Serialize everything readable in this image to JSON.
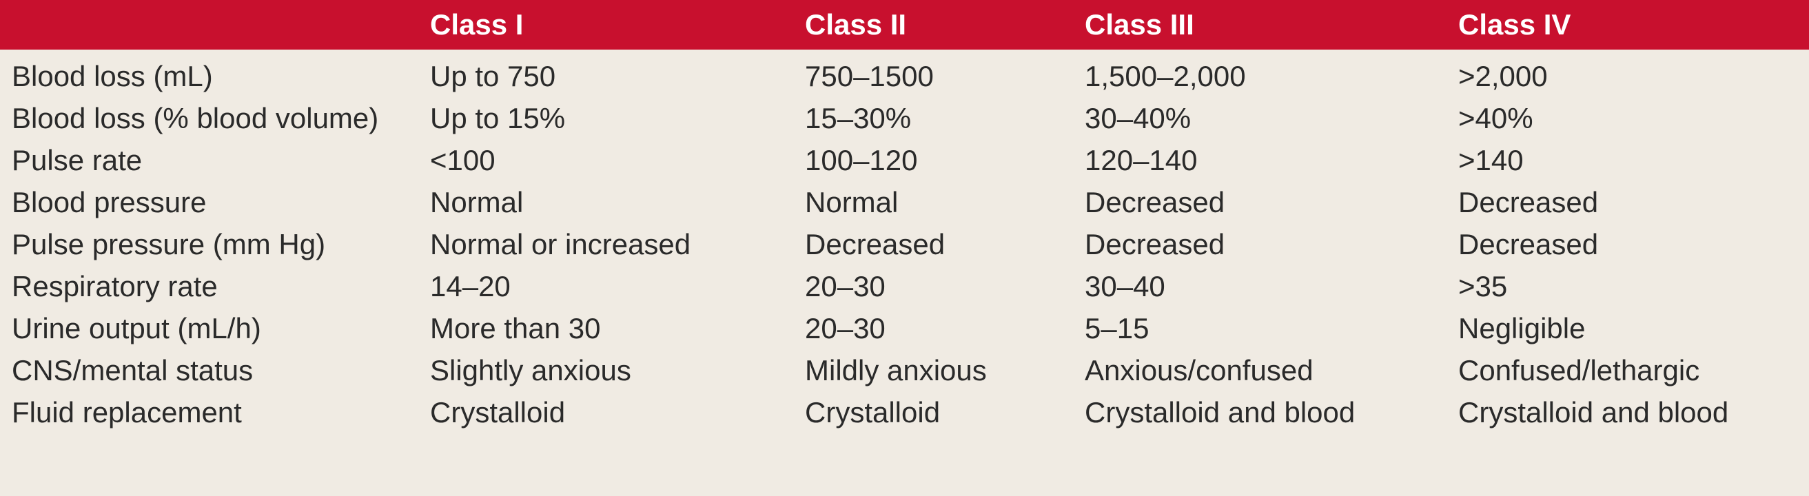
{
  "table": {
    "columns": [
      "",
      "Class I",
      "Class II",
      "Class III",
      "Class IV"
    ],
    "rows": [
      [
        "Blood loss (mL)",
        "Up to 750",
        "750–1500",
        "1,500–2,000",
        ">2,000"
      ],
      [
        "Blood loss (% blood volume)",
        "Up to 15%",
        "15–30%",
        "30–40%",
        ">40%"
      ],
      [
        "Pulse rate",
        "<100",
        "100–120",
        "120–140",
        ">140"
      ],
      [
        "Blood pressure",
        "Normal",
        "Normal",
        "Decreased",
        "Decreased"
      ],
      [
        "Pulse pressure (mm Hg)",
        "Normal or increased",
        "Decreased",
        "Decreased",
        "Decreased"
      ],
      [
        "Respiratory rate",
        "14–20",
        "20–30",
        "30–40",
        ">35"
      ],
      [
        "Urine output (mL/h)",
        "More than 30",
        "20–30",
        "5–15",
        "Negligible"
      ],
      [
        "CNS/mental status",
        "Slightly anxious",
        "Mildly anxious",
        "Anxious/confused",
        "Confused/lethargic"
      ],
      [
        "Fluid replacement",
        "Crystalloid",
        "Crystalloid",
        "Crystalloid and blood",
        "Crystalloid and blood"
      ]
    ]
  }
}
